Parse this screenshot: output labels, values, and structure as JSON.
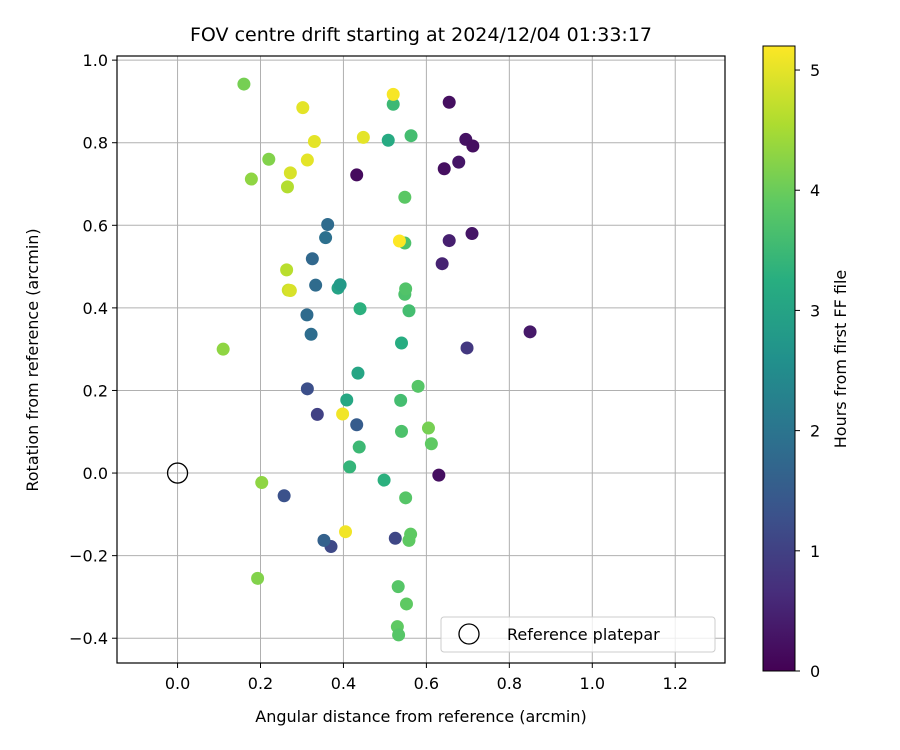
{
  "chart_data": {
    "type": "scatter",
    "title": "FOV centre drift starting at 2024/12/04 01:33:17",
    "xlabel": "Angular distance from reference (arcmin)",
    "ylabel": "Rotation from reference (arcmin)",
    "xlim": [
      -0.146,
      1.32
    ],
    "ylim": [
      -0.46,
      1.01
    ],
    "xticks": [
      0.0,
      0.2,
      0.4,
      0.6,
      0.8,
      1.0,
      1.2
    ],
    "xtick_labels": [
      "0.0",
      "0.2",
      "0.4",
      "0.6",
      "0.8",
      "1.0",
      "1.2"
    ],
    "yticks": [
      -0.4,
      -0.2,
      0.0,
      0.2,
      0.4,
      0.6,
      0.8,
      1.0
    ],
    "ytick_labels": [
      "−0.4",
      "−0.2",
      "0.0",
      "0.2",
      "0.4",
      "0.6",
      "0.8",
      "1.0"
    ],
    "grid": true,
    "colormap": "viridis",
    "colorbar": {
      "label": "Hours from first FF file",
      "range": [
        0,
        5.2
      ],
      "ticks": [
        0,
        1,
        2,
        3,
        4,
        5
      ],
      "tick_labels": [
        "0",
        "1",
        "2",
        "3",
        "4",
        "5"
      ]
    },
    "legend": {
      "placement": "lower-right",
      "entries": [
        {
          "label": "Reference platepar",
          "marker": "open-circle"
        }
      ]
    },
    "reference_point": {
      "x": 0.0,
      "y": 0.0
    },
    "points": [
      {
        "x": 0.655,
        "y": 0.898,
        "hours": 0.2
      },
      {
        "x": 0.695,
        "y": 0.808,
        "hours": 0.25
      },
      {
        "x": 0.712,
        "y": 0.792,
        "hours": 0.2
      },
      {
        "x": 0.678,
        "y": 0.753,
        "hours": 0.3
      },
      {
        "x": 0.643,
        "y": 0.737,
        "hours": 0.2
      },
      {
        "x": 0.432,
        "y": 0.722,
        "hours": 0.15
      },
      {
        "x": 0.655,
        "y": 0.563,
        "hours": 0.45
      },
      {
        "x": 0.71,
        "y": 0.58,
        "hours": 0.3
      },
      {
        "x": 0.638,
        "y": 0.507,
        "hours": 0.5
      },
      {
        "x": 0.85,
        "y": 0.342,
        "hours": 0.35
      },
      {
        "x": 0.698,
        "y": 0.303,
        "hours": 0.85
      },
      {
        "x": 0.63,
        "y": -0.005,
        "hours": 0.2
      },
      {
        "x": 0.337,
        "y": 0.142,
        "hours": 1.0
      },
      {
        "x": 0.525,
        "y": -0.158,
        "hours": 1.1
      },
      {
        "x": 0.37,
        "y": -0.178,
        "hours": 1.15
      },
      {
        "x": 0.257,
        "y": -0.055,
        "hours": 1.3
      },
      {
        "x": 0.313,
        "y": 0.204,
        "hours": 1.25
      },
      {
        "x": 0.432,
        "y": 0.117,
        "hours": 1.5
      },
      {
        "x": 0.353,
        "y": -0.163,
        "hours": 1.6
      },
      {
        "x": 0.325,
        "y": 0.519,
        "hours": 1.75
      },
      {
        "x": 0.333,
        "y": 0.455,
        "hours": 1.8
      },
      {
        "x": 0.312,
        "y": 0.383,
        "hours": 1.8
      },
      {
        "x": 0.322,
        "y": 0.336,
        "hours": 1.85
      },
      {
        "x": 0.357,
        "y": 0.57,
        "hours": 1.9
      },
      {
        "x": 0.362,
        "y": 0.602,
        "hours": 1.8
      },
      {
        "x": 0.387,
        "y": 0.448,
        "hours": 3.0
      },
      {
        "x": 0.392,
        "y": 0.456,
        "hours": 2.8
      },
      {
        "x": 0.435,
        "y": 0.242,
        "hours": 3.05
      },
      {
        "x": 0.408,
        "y": 0.177,
        "hours": 3.1
      },
      {
        "x": 0.508,
        "y": 0.806,
        "hours": 3.15
      },
      {
        "x": 0.54,
        "y": 0.315,
        "hours": 3.2
      },
      {
        "x": 0.44,
        "y": 0.398,
        "hours": 3.3
      },
      {
        "x": 0.498,
        "y": -0.017,
        "hours": 3.3
      },
      {
        "x": 0.415,
        "y": 0.015,
        "hours": 3.4
      },
      {
        "x": 0.438,
        "y": 0.063,
        "hours": 3.5
      },
      {
        "x": 0.52,
        "y": 0.893,
        "hours": 3.5
      },
      {
        "x": 0.538,
        "y": 0.176,
        "hours": 3.6
      },
      {
        "x": 0.563,
        "y": 0.817,
        "hours": 3.6
      },
      {
        "x": 0.558,
        "y": 0.393,
        "hours": 3.6
      },
      {
        "x": 0.548,
        "y": 0.557,
        "hours": 3.7
      },
      {
        "x": 0.548,
        "y": 0.433,
        "hours": 3.7
      },
      {
        "x": 0.55,
        "y": 0.446,
        "hours": 3.75
      },
      {
        "x": 0.54,
        "y": 0.101,
        "hours": 3.7
      },
      {
        "x": 0.532,
        "y": -0.275,
        "hours": 3.8
      },
      {
        "x": 0.55,
        "y": -0.06,
        "hours": 3.8
      },
      {
        "x": 0.548,
        "y": 0.668,
        "hours": 3.85
      },
      {
        "x": 0.58,
        "y": 0.21,
        "hours": 3.8
      },
      {
        "x": 0.562,
        "y": -0.148,
        "hours": 3.9
      },
      {
        "x": 0.558,
        "y": -0.163,
        "hours": 3.9
      },
      {
        "x": 0.53,
        "y": -0.372,
        "hours": 3.9
      },
      {
        "x": 0.533,
        "y": -0.392,
        "hours": 3.8
      },
      {
        "x": 0.552,
        "y": -0.317,
        "hours": 3.9
      },
      {
        "x": 0.612,
        "y": 0.071,
        "hours": 3.9
      },
      {
        "x": 0.605,
        "y": 0.109,
        "hours": 4.1
      },
      {
        "x": 0.16,
        "y": 0.942,
        "hours": 4.1
      },
      {
        "x": 0.22,
        "y": 0.76,
        "hours": 4.2
      },
      {
        "x": 0.178,
        "y": 0.712,
        "hours": 4.3
      },
      {
        "x": 0.11,
        "y": 0.3,
        "hours": 4.3
      },
      {
        "x": 0.203,
        "y": -0.023,
        "hours": 4.3
      },
      {
        "x": 0.193,
        "y": -0.255,
        "hours": 4.2
      },
      {
        "x": 0.265,
        "y": 0.693,
        "hours": 4.6
      },
      {
        "x": 0.263,
        "y": 0.492,
        "hours": 4.65
      },
      {
        "x": 0.267,
        "y": 0.443,
        "hours": 4.8
      },
      {
        "x": 0.272,
        "y": 0.442,
        "hours": 4.9
      },
      {
        "x": 0.272,
        "y": 0.727,
        "hours": 4.9
      },
      {
        "x": 0.313,
        "y": 0.758,
        "hours": 5.0
      },
      {
        "x": 0.302,
        "y": 0.885,
        "hours": 5.0
      },
      {
        "x": 0.33,
        "y": 0.803,
        "hours": 5.0
      },
      {
        "x": 0.448,
        "y": 0.813,
        "hours": 5.0
      },
      {
        "x": 0.398,
        "y": 0.143,
        "hours": 5.1
      },
      {
        "x": 0.405,
        "y": -0.142,
        "hours": 5.1
      },
      {
        "x": 0.52,
        "y": 0.917,
        "hours": 5.15
      },
      {
        "x": 0.535,
        "y": 0.562,
        "hours": 5.2
      }
    ]
  }
}
